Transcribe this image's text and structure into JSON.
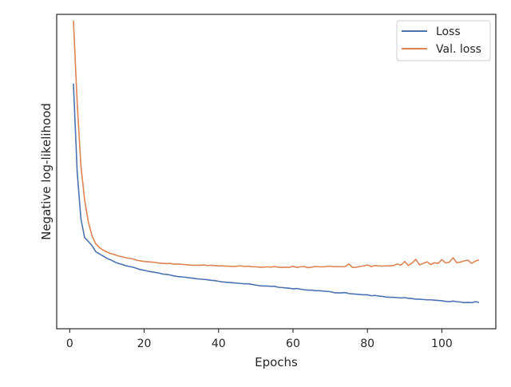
{
  "chart_data": {
    "type": "line",
    "title": "",
    "xlabel": "Epochs",
    "ylabel": "Negative log-likelihood",
    "xlim": [
      -3.5,
      114.5
    ],
    "ylim": [
      0.0,
      1.0
    ],
    "y_tick_labels_shown": false,
    "x_ticks": [
      0,
      20,
      40,
      60,
      80,
      100
    ],
    "x_tick_labels": [
      "0",
      "20",
      "40",
      "60",
      "80",
      "100"
    ],
    "grid": false,
    "legend": {
      "position": "top-right"
    },
    "series": [
      {
        "name": "Loss",
        "color": "#4c72b0",
        "x": [
          1,
          2,
          3,
          4,
          5,
          6,
          7,
          8,
          9,
          10,
          11,
          12,
          13,
          14,
          15,
          16,
          17,
          18,
          19,
          20,
          21,
          22,
          23,
          24,
          25,
          26,
          27,
          28,
          29,
          30,
          31,
          32,
          33,
          34,
          35,
          36,
          37,
          38,
          39,
          40,
          41,
          42,
          43,
          44,
          45,
          46,
          47,
          48,
          49,
          50,
          51,
          52,
          53,
          54,
          55,
          56,
          57,
          58,
          59,
          60,
          61,
          62,
          63,
          64,
          65,
          66,
          67,
          68,
          69,
          70,
          71,
          72,
          73,
          74,
          75,
          76,
          77,
          78,
          79,
          80,
          81,
          82,
          83,
          84,
          85,
          86,
          87,
          88,
          89,
          90,
          91,
          92,
          93,
          94,
          95,
          96,
          97,
          98,
          99,
          100,
          101,
          102,
          103,
          104,
          105,
          106,
          107,
          108,
          109,
          110
        ],
        "y": [
          0.78,
          0.5,
          0.35,
          0.29,
          0.278,
          0.264,
          0.245,
          0.238,
          0.231,
          0.224,
          0.219,
          0.213,
          0.208,
          0.205,
          0.201,
          0.198,
          0.196,
          0.192,
          0.188,
          0.186,
          0.183,
          0.181,
          0.179,
          0.177,
          0.174,
          0.173,
          0.171,
          0.168,
          0.166,
          0.165,
          0.164,
          0.162,
          0.161,
          0.159,
          0.158,
          0.157,
          0.156,
          0.154,
          0.153,
          0.151,
          0.149,
          0.148,
          0.147,
          0.146,
          0.145,
          0.144,
          0.143,
          0.143,
          0.141,
          0.139,
          0.137,
          0.136,
          0.136,
          0.135,
          0.135,
          0.132,
          0.131,
          0.13,
          0.129,
          0.127,
          0.128,
          0.126,
          0.124,
          0.123,
          0.123,
          0.121,
          0.121,
          0.12,
          0.119,
          0.118,
          0.115,
          0.114,
          0.114,
          0.115,
          0.112,
          0.111,
          0.11,
          0.109,
          0.108,
          0.108,
          0.105,
          0.106,
          0.104,
          0.103,
          0.101,
          0.1,
          0.1,
          0.099,
          0.098,
          0.099,
          0.097,
          0.096,
          0.094,
          0.094,
          0.093,
          0.092,
          0.092,
          0.091,
          0.09,
          0.089,
          0.087,
          0.086,
          0.088,
          0.086,
          0.085,
          0.083,
          0.084,
          0.083,
          0.086,
          0.084
        ]
      },
      {
        "name": "Val. loss",
        "color": "#dd8452",
        "x": [
          1,
          2,
          3,
          4,
          5,
          6,
          7,
          8,
          9,
          10,
          11,
          12,
          13,
          14,
          15,
          16,
          17,
          18,
          19,
          20,
          21,
          22,
          23,
          24,
          25,
          26,
          27,
          28,
          29,
          30,
          31,
          32,
          33,
          34,
          35,
          36,
          37,
          38,
          39,
          40,
          41,
          42,
          43,
          44,
          45,
          46,
          47,
          48,
          49,
          50,
          51,
          52,
          53,
          54,
          55,
          56,
          57,
          58,
          59,
          60,
          61,
          62,
          63,
          64,
          65,
          66,
          67,
          68,
          69,
          70,
          71,
          72,
          73,
          74,
          75,
          76,
          77,
          78,
          79,
          80,
          81,
          82,
          83,
          84,
          85,
          86,
          87,
          88,
          89,
          90,
          91,
          92,
          93,
          94,
          95,
          96,
          97,
          98,
          99,
          100,
          101,
          102,
          103,
          104,
          105,
          106,
          107,
          108,
          109,
          110
        ],
        "y": [
          0.98,
          0.72,
          0.52,
          0.41,
          0.34,
          0.295,
          0.27,
          0.258,
          0.25,
          0.244,
          0.239,
          0.236,
          0.232,
          0.229,
          0.226,
          0.224,
          0.222,
          0.218,
          0.216,
          0.214,
          0.213,
          0.212,
          0.211,
          0.209,
          0.208,
          0.207,
          0.208,
          0.205,
          0.206,
          0.205,
          0.204,
          0.203,
          0.202,
          0.202,
          0.202,
          0.203,
          0.201,
          0.202,
          0.201,
          0.2,
          0.2,
          0.199,
          0.199,
          0.198,
          0.199,
          0.2,
          0.198,
          0.199,
          0.197,
          0.197,
          0.196,
          0.196,
          0.197,
          0.196,
          0.198,
          0.196,
          0.195,
          0.196,
          0.195,
          0.199,
          0.195,
          0.197,
          0.198,
          0.194,
          0.196,
          0.198,
          0.197,
          0.197,
          0.198,
          0.199,
          0.197,
          0.198,
          0.197,
          0.198,
          0.206,
          0.195,
          0.196,
          0.198,
          0.2,
          0.203,
          0.198,
          0.201,
          0.2,
          0.199,
          0.2,
          0.2,
          0.201,
          0.206,
          0.202,
          0.214,
          0.201,
          0.209,
          0.221,
          0.203,
          0.208,
          0.213,
          0.204,
          0.21,
          0.208,
          0.22,
          0.209,
          0.212,
          0.226,
          0.21,
          0.212,
          0.216,
          0.218,
          0.208,
          0.215,
          0.219
        ]
      }
    ]
  }
}
